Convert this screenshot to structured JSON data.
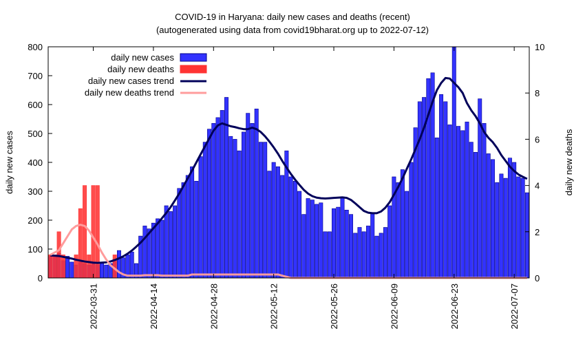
{
  "chart_data": {
    "type": "bar",
    "title": "COVID-19 in Haryana: daily new cases and deaths (recent)",
    "subtitle": "(autogenerated using data from covid19bharat.org up to 2022-07-12)",
    "ylabel": "daily new cases",
    "y2label": "daily new deaths",
    "ylim": [
      0,
      800
    ],
    "y2lim": [
      0,
      10
    ],
    "yticks": [
      0,
      100,
      200,
      300,
      400,
      500,
      600,
      700,
      800
    ],
    "y2ticks": [
      0,
      2,
      4,
      6,
      8,
      10
    ],
    "xticks": [
      {
        "index": 10,
        "label": "2022-03-31"
      },
      {
        "index": 24,
        "label": "2022-04-14"
      },
      {
        "index": 38,
        "label": "2022-04-28"
      },
      {
        "index": 52,
        "label": "2022-05-12"
      },
      {
        "index": 66,
        "label": "2022-05-26"
      },
      {
        "index": 80,
        "label": "2022-06-09"
      },
      {
        "index": 94,
        "label": "2022-06-23"
      },
      {
        "index": 108,
        "label": "2022-07-07"
      }
    ],
    "start_date": "2022-03-21",
    "legend": {
      "position": "top-left",
      "items": [
        {
          "key": "cases",
          "label": "daily new cases"
        },
        {
          "key": "deaths",
          "label": "daily new deaths"
        },
        {
          "key": "cases_trend",
          "label": "daily new cases trend"
        },
        {
          "key": "deaths_trend",
          "label": "daily new deaths trend"
        }
      ]
    },
    "colors": {
      "cases": "#3333ff",
      "cases_edge": "#00008b",
      "deaths": "#ff3333",
      "cases_trend": "#00005a",
      "deaths_trend": "#ff9c9c"
    },
    "series": [
      {
        "name": "daily new cases",
        "key": "cases",
        "axis": "y1",
        "values": [
          75,
          80,
          85,
          60,
          75,
          55,
          45,
          55,
          50,
          45,
          55,
          45,
          55,
          45,
          50,
          60,
          95,
          70,
          80,
          90,
          50,
          145,
          180,
          170,
          190,
          205,
          200,
          250,
          230,
          250,
          310,
          330,
          355,
          385,
          335,
          420,
          470,
          515,
          535,
          555,
          580,
          625,
          490,
          480,
          440,
          505,
          570,
          535,
          585,
          470,
          470,
          370,
          400,
          385,
          355,
          440,
          350,
          335,
          300,
          220,
          275,
          270,
          255,
          260,
          160,
          160,
          240,
          245,
          280,
          235,
          220,
          155,
          175,
          160,
          180,
          225,
          145,
          155,
          175,
          250,
          350,
          330,
          375,
          300,
          400,
          520,
          610,
          625,
          690,
          710,
          485,
          635,
          610,
          530,
          800,
          525,
          510,
          540,
          470,
          435,
          620,
          535,
          430,
          410,
          330,
          360,
          345,
          415,
          400,
          350,
          345,
          295
        ]
      },
      {
        "name": "daily new deaths",
        "key": "deaths",
        "axis": "y2",
        "values": [
          1,
          1,
          2,
          1,
          0,
          0,
          1,
          3,
          4,
          1,
          4,
          4,
          0,
          0,
          0,
          1,
          0,
          0,
          0,
          0,
          0,
          0,
          0,
          0,
          0,
          0,
          0,
          0,
          0,
          0,
          0,
          0,
          0,
          0,
          0,
          0,
          0,
          0,
          0,
          0,
          0,
          0,
          0,
          0,
          0,
          0,
          0,
          0,
          0,
          0,
          0,
          0,
          0,
          0,
          0,
          0,
          0,
          0,
          0,
          0,
          0,
          0,
          0,
          0,
          0,
          0,
          0,
          0,
          0,
          0,
          0,
          0,
          0,
          0,
          0,
          0,
          0,
          0,
          0,
          0,
          0,
          0,
          0,
          0,
          0,
          0,
          0,
          0,
          0,
          0,
          0,
          0,
          0,
          0,
          0,
          0,
          0,
          0,
          0,
          0,
          0,
          0,
          0,
          0,
          0,
          0,
          0,
          0,
          0,
          0,
          0,
          0
        ]
      },
      {
        "name": "daily new cases trend",
        "key": "cases_trend",
        "axis": "y1",
        "values": [
          78,
          77,
          76,
          73,
          70,
          67,
          63,
          60,
          57,
          55,
          53,
          52,
          53,
          54,
          57,
          62,
          68,
          75,
          84,
          95,
          108,
          122,
          138,
          155,
          172,
          189,
          207,
          225,
          245,
          268,
          292,
          318,
          345,
          372,
          400,
          428,
          455,
          483,
          510,
          528,
          535,
          530,
          525,
          522,
          518,
          515,
          515,
          520,
          515,
          505,
          490,
          472,
          452,
          430,
          405,
          382,
          360,
          340,
          322,
          305,
          292,
          283,
          278,
          276,
          275,
          276,
          277,
          278,
          279,
          277,
          270,
          258,
          245,
          232,
          226,
          224,
          224,
          230,
          243,
          262,
          288,
          315,
          345,
          378,
          410,
          445,
          480,
          520,
          565,
          610,
          650,
          675,
          692,
          690,
          675,
          660,
          640,
          605,
          580,
          560,
          535,
          505,
          485,
          470,
          450,
          425,
          405,
          385,
          370,
          358,
          350,
          343
        ]
      },
      {
        "name": "daily new deaths trend",
        "key": "deaths_trend",
        "axis": "y2",
        "values": [
          1.0,
          1.1,
          1.2,
          1.5,
          1.8,
          2.1,
          2.25,
          2.3,
          2.25,
          2.05,
          1.75,
          1.45,
          1.1,
          0.8,
          0.55,
          0.4,
          0.25,
          0.15,
          0.1,
          0.1,
          0.1,
          0.1,
          0.12,
          0.12,
          0.12,
          0.12,
          0.1,
          0.1,
          0.1,
          0.1,
          0.1,
          0.1,
          0.1,
          0.15,
          0.15,
          0.15,
          0.15,
          0.15,
          0.15,
          0.15,
          0.15,
          0.15,
          0.15,
          0.15,
          0.15,
          0.15,
          0.15,
          0.15,
          0.15,
          0.15,
          0.15,
          0.15,
          0.15,
          0.15,
          0.1,
          0.05,
          0,
          0,
          0,
          0,
          0,
          0,
          0,
          0,
          0,
          0,
          0,
          0,
          0,
          0,
          0,
          0,
          0,
          0,
          0,
          0,
          0,
          0,
          0,
          0,
          0,
          0,
          0,
          0,
          0,
          0,
          0,
          0,
          0,
          0,
          0,
          0,
          0,
          0,
          0,
          0,
          0,
          0,
          0,
          0,
          0,
          0,
          0,
          0,
          0,
          0,
          0,
          0,
          0,
          0,
          0,
          0
        ]
      }
    ]
  }
}
